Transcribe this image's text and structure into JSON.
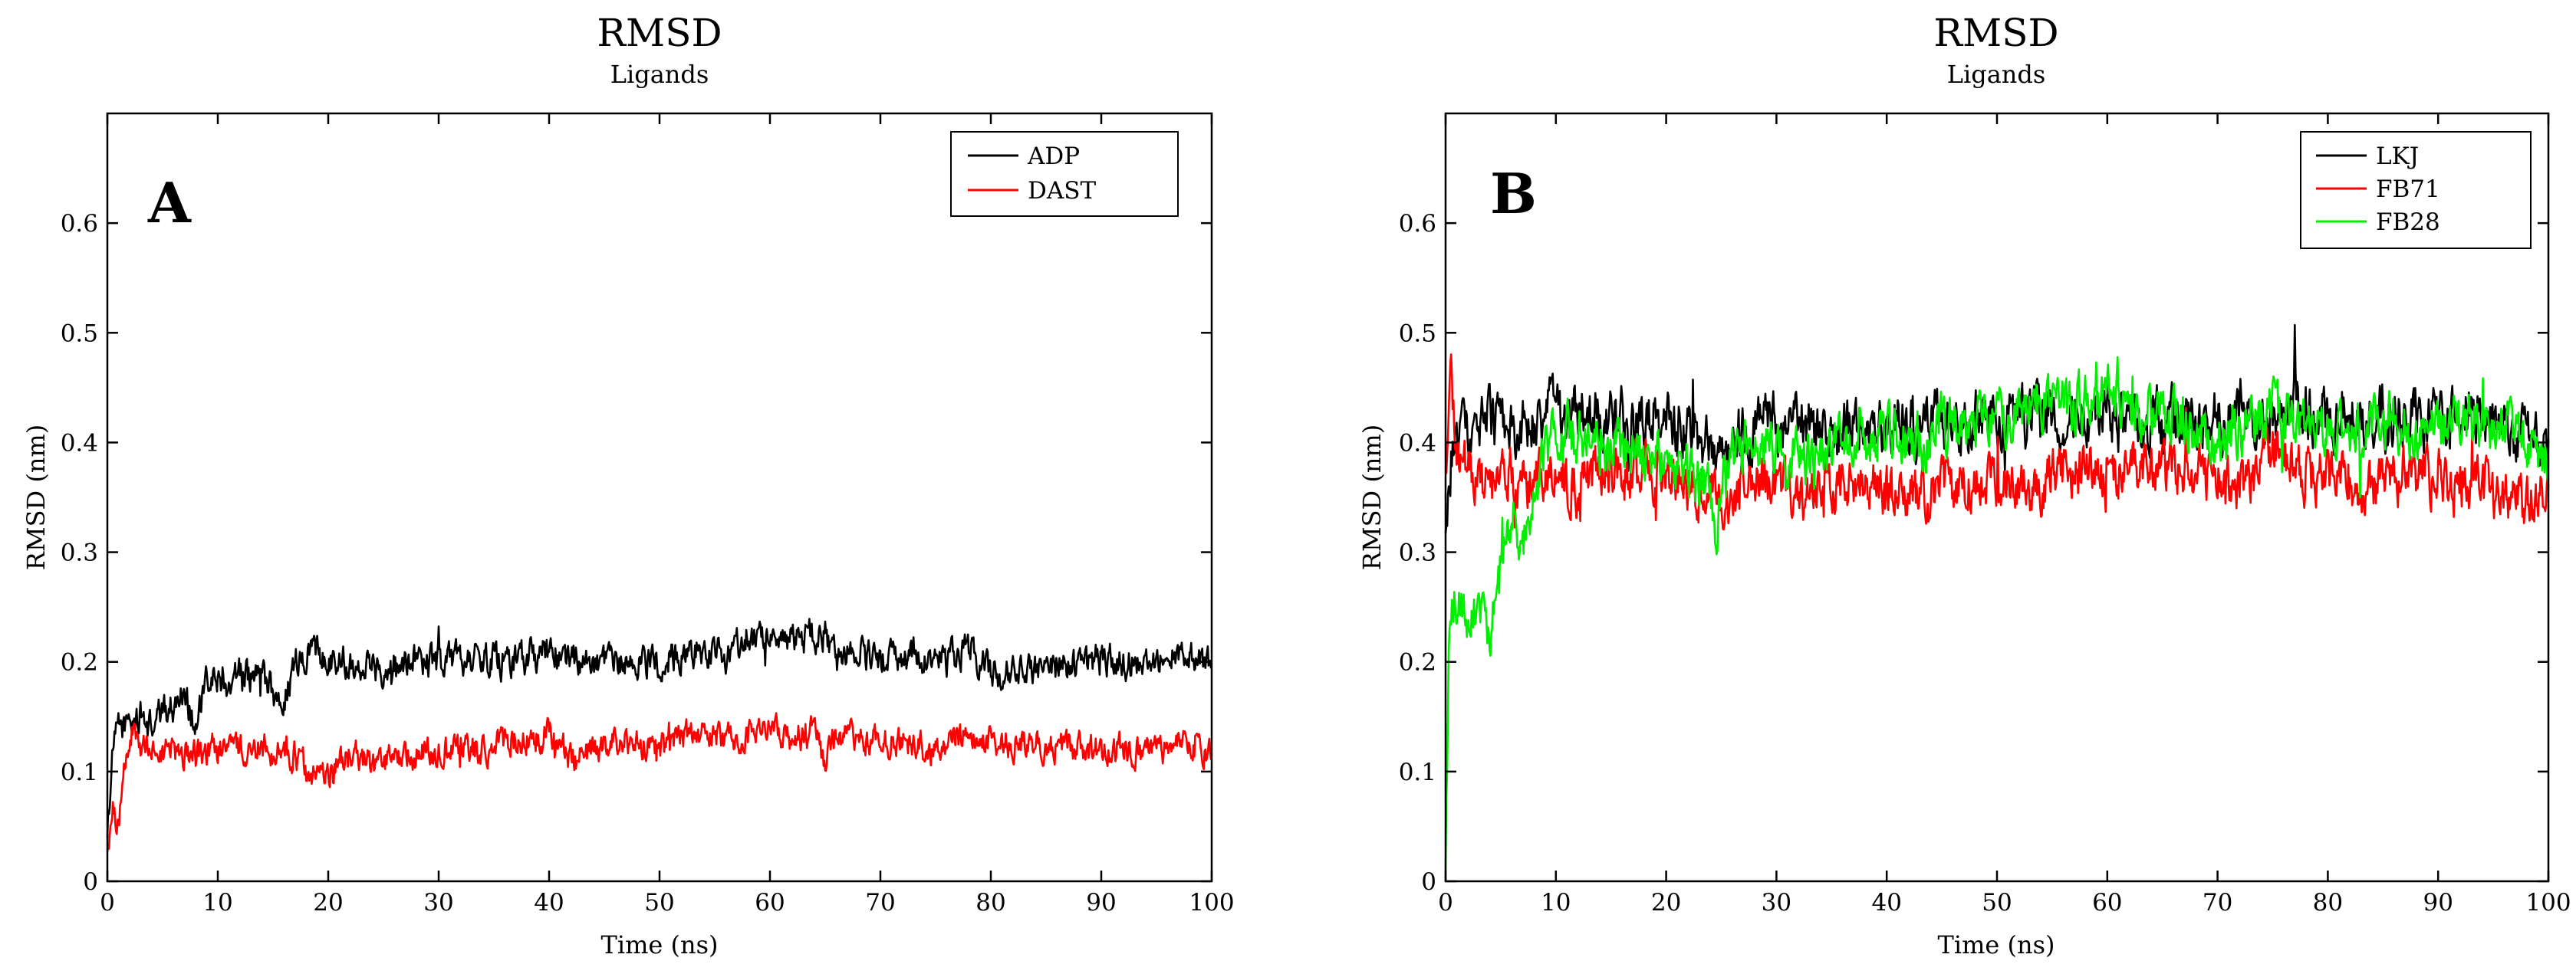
{
  "chart_data": [
    {
      "type": "line",
      "panel_label": "A",
      "title": "RMSD",
      "subtitle": "Ligands",
      "xlabel": "Time (ns)",
      "ylabel": "RMSD (nm)",
      "xlim": [
        0,
        100
      ],
      "ylim": [
        0,
        0.7
      ],
      "x_ticks": [
        0,
        10,
        20,
        30,
        40,
        50,
        60,
        70,
        80,
        90,
        100
      ],
      "x_tick_labels": [
        "0",
        "10",
        "20",
        "30",
        "40",
        "50",
        "60",
        "70",
        "80",
        "90",
        "100"
      ],
      "y_ticks": [
        0,
        0.1,
        0.2,
        0.3,
        0.4,
        0.5,
        0.6
      ],
      "y_tick_labels": [
        "0",
        "0.1",
        "0.2",
        "0.3",
        "0.4",
        "0.5",
        "0.6"
      ],
      "grid": false,
      "legend_position": "top-right",
      "series": [
        {
          "name": "ADP",
          "color": "#000000",
          "x": [
            0,
            0.5,
            1,
            2,
            3,
            4,
            5,
            6,
            7,
            8,
            9,
            10,
            11,
            12,
            13,
            14,
            15,
            16,
            17,
            18,
            20,
            22,
            25,
            28,
            30,
            33,
            36,
            40,
            43,
            45,
            47,
            50,
            53,
            56,
            58,
            60,
            62,
            65,
            66,
            68,
            70,
            73,
            76,
            78,
            80,
            82,
            84,
            86,
            88,
            90,
            92,
            94,
            96,
            98,
            100
          ],
          "y": [
            0.05,
            0.12,
            0.14,
            0.145,
            0.15,
            0.14,
            0.155,
            0.16,
            0.175,
            0.14,
            0.18,
            0.185,
            0.18,
            0.19,
            0.185,
            0.19,
            0.17,
            0.165,
            0.2,
            0.21,
            0.205,
            0.2,
            0.195,
            0.205,
            0.2,
            0.205,
            0.2,
            0.21,
            0.2,
            0.195,
            0.2,
            0.2,
            0.21,
            0.205,
            0.225,
            0.22,
            0.22,
            0.225,
            0.2,
            0.21,
            0.2,
            0.205,
            0.2,
            0.21,
            0.19,
            0.195,
            0.19,
            0.2,
            0.195,
            0.205,
            0.2,
            0.2,
            0.21,
            0.205,
            0.195
          ],
          "noise": 0.012
        },
        {
          "name": "DAST",
          "color": "#ff0000",
          "x": [
            0,
            0.5,
            1,
            1.5,
            2,
            3,
            5,
            8,
            10,
            13,
            15,
            17,
            18,
            20,
            22,
            24,
            26,
            28,
            30,
            33,
            36,
            38,
            40,
            42,
            44,
            46,
            48,
            50,
            53,
            55,
            58,
            60,
            62,
            64,
            65,
            66,
            68,
            70,
            73,
            75,
            76,
            78,
            80,
            82,
            85,
            88,
            90,
            93,
            95,
            97,
            100
          ],
          "y": [
            0.03,
            0.06,
            0.05,
            0.1,
            0.13,
            0.12,
            0.12,
            0.115,
            0.12,
            0.12,
            0.12,
            0.115,
            0.1,
            0.1,
            0.115,
            0.105,
            0.11,
            0.115,
            0.12,
            0.12,
            0.125,
            0.13,
            0.135,
            0.11,
            0.12,
            0.13,
            0.125,
            0.12,
            0.135,
            0.13,
            0.135,
            0.14,
            0.13,
            0.135,
            0.11,
            0.135,
            0.13,
            0.13,
            0.125,
            0.115,
            0.13,
            0.135,
            0.13,
            0.125,
            0.125,
            0.12,
            0.12,
            0.12,
            0.115,
            0.125,
            0.12
          ],
          "noise": 0.011
        }
      ]
    },
    {
      "type": "line",
      "panel_label": "B",
      "title": "RMSD",
      "subtitle": "Ligands",
      "xlabel": "Time (ns)",
      "ylabel": "RMSD (nm)",
      "xlim": [
        0,
        100
      ],
      "ylim": [
        0,
        0.7
      ],
      "x_ticks": [
        0,
        10,
        20,
        30,
        40,
        50,
        60,
        70,
        80,
        90,
        100
      ],
      "x_tick_labels": [
        "0",
        "10",
        "20",
        "30",
        "40",
        "50",
        "60",
        "70",
        "80",
        "90",
        "100"
      ],
      "y_ticks": [
        0,
        0.1,
        0.2,
        0.3,
        0.4,
        0.5,
        0.6
      ],
      "y_tick_labels": [
        "0",
        "0.1",
        "0.2",
        "0.3",
        "0.4",
        "0.5",
        "0.6"
      ],
      "grid": false,
      "legend_position": "top-right",
      "series": [
        {
          "name": "LKJ",
          "color": "#000000",
          "x": [
            0,
            0.5,
            1,
            2,
            4,
            6,
            8,
            10,
            12,
            14,
            16,
            18,
            20,
            22,
            25,
            28,
            30,
            33,
            36,
            40,
            43,
            46,
            50,
            53,
            56,
            60,
            63,
            66,
            70,
            73,
            76,
            80,
            83,
            86,
            90,
            93,
            96,
            98,
            100
          ],
          "y": [
            0.3,
            0.38,
            0.4,
            0.41,
            0.42,
            0.41,
            0.42,
            0.43,
            0.43,
            0.42,
            0.41,
            0.42,
            0.415,
            0.41,
            0.4,
            0.41,
            0.42,
            0.415,
            0.41,
            0.42,
            0.415,
            0.42,
            0.42,
            0.42,
            0.425,
            0.42,
            0.42,
            0.425,
            0.42,
            0.42,
            0.43,
            0.425,
            0.43,
            0.42,
            0.425,
            0.43,
            0.42,
            0.41,
            0.4
          ],
          "noise": 0.022
        },
        {
          "name": "FB71",
          "color": "#ff0000",
          "x": [
            0,
            0.5,
            1,
            2,
            4,
            6,
            8,
            10,
            12,
            14,
            16,
            18,
            20,
            22,
            25,
            28,
            30,
            33,
            36,
            40,
            43,
            46,
            50,
            53,
            56,
            60,
            63,
            66,
            70,
            73,
            75,
            78,
            80,
            83,
            86,
            90,
            93,
            96,
            98,
            100
          ],
          "y": [
            0.36,
            0.45,
            0.4,
            0.37,
            0.36,
            0.37,
            0.36,
            0.37,
            0.36,
            0.38,
            0.37,
            0.37,
            0.38,
            0.36,
            0.35,
            0.36,
            0.36,
            0.355,
            0.36,
            0.355,
            0.35,
            0.355,
            0.36,
            0.365,
            0.37,
            0.375,
            0.38,
            0.37,
            0.37,
            0.36,
            0.4,
            0.37,
            0.365,
            0.36,
            0.37,
            0.37,
            0.36,
            0.35,
            0.345,
            0.35
          ],
          "noise": 0.02
        },
        {
          "name": "FB28",
          "color": "#00ee00",
          "x": [
            0,
            0.3,
            0.6,
            1,
            2,
            3,
            4,
            5,
            6,
            7,
            8,
            9,
            10,
            12,
            14,
            16,
            18,
            20,
            22,
            24,
            24.5,
            25,
            26,
            28,
            30,
            33,
            36,
            40,
            43,
            46,
            50,
            53,
            56,
            60,
            63,
            66,
            70,
            73,
            76,
            78,
            80,
            83,
            86,
            88,
            90,
            93,
            96,
            98,
            100
          ],
          "y": [
            0.02,
            0.2,
            0.26,
            0.25,
            0.24,
            0.25,
            0.22,
            0.3,
            0.34,
            0.3,
            0.36,
            0.38,
            0.4,
            0.41,
            0.4,
            0.395,
            0.39,
            0.38,
            0.37,
            0.36,
            0.3,
            0.37,
            0.4,
            0.4,
            0.39,
            0.38,
            0.4,
            0.41,
            0.4,
            0.42,
            0.42,
            0.44,
            0.43,
            0.44,
            0.43,
            0.42,
            0.4,
            0.42,
            0.43,
            0.41,
            0.42,
            0.41,
            0.42,
            0.4,
            0.42,
            0.42,
            0.41,
            0.4,
            0.38
          ],
          "noise": 0.02
        }
      ]
    }
  ]
}
